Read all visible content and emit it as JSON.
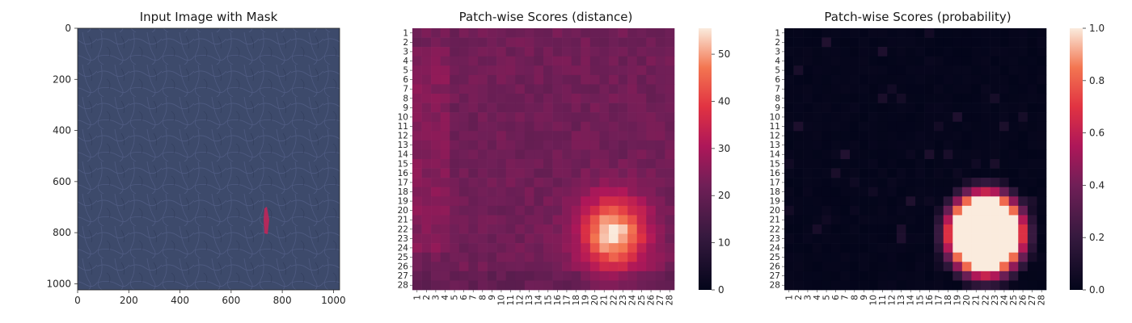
{
  "chart_data": [
    {
      "type": "image",
      "title": "Input Image with Mask",
      "xlim": [
        0,
        1024
      ],
      "ylim": [
        1024,
        0
      ],
      "xticks": [
        0,
        200,
        400,
        600,
        800,
        1000
      ],
      "yticks": [
        0,
        200,
        400,
        600,
        800,
        1000
      ],
      "image_description_colors": {
        "background": "#3c4a6c",
        "mask": "#c0265a"
      },
      "mask_region": {
        "x": [
          725,
          750
        ],
        "y": [
          705,
          800
        ]
      }
    },
    {
      "type": "heatmap",
      "title": "Patch-wise Scores (distance)",
      "rows": 28,
      "cols": 28,
      "xticks": [
        "1",
        "2",
        "3",
        "4",
        "5",
        "6",
        "7",
        "8",
        "9",
        "10",
        "11",
        "12",
        "13",
        "14",
        "15",
        "16",
        "17",
        "18",
        "19",
        "20",
        "21",
        "22",
        "23",
        "24",
        "25",
        "26",
        "27",
        "28"
      ],
      "yticks": [
        "1",
        "2",
        "3",
        "4",
        "5",
        "6",
        "7",
        "8",
        "9",
        "10",
        "11",
        "12",
        "13",
        "14",
        "15",
        "16",
        "17",
        "18",
        "19",
        "20",
        "21",
        "22",
        "23",
        "24",
        "25",
        "26",
        "27",
        "28"
      ],
      "colorbar": {
        "min": 0,
        "max": 55.5,
        "ticks": [
          0,
          10,
          20,
          30,
          40,
          50
        ]
      },
      "base_value": 22,
      "hotspot": {
        "center_row": 22.5,
        "center_col": 22,
        "peak": 55,
        "description": "bright anomaly region rows 19-26, cols 19-25"
      }
    },
    {
      "type": "heatmap",
      "title": "Patch-wise Scores (probability)",
      "rows": 28,
      "cols": 28,
      "xticks": [
        "1",
        "2",
        "3",
        "4",
        "5",
        "6",
        "7",
        "8",
        "9",
        "10",
        "11",
        "12",
        "13",
        "14",
        "15",
        "16",
        "17",
        "18",
        "19",
        "20",
        "21",
        "22",
        "23",
        "24",
        "25",
        "26",
        "27",
        "28"
      ],
      "yticks": [
        "1",
        "2",
        "3",
        "4",
        "5",
        "6",
        "7",
        "8",
        "9",
        "10",
        "11",
        "12",
        "13",
        "14",
        "15",
        "16",
        "17",
        "18",
        "19",
        "20",
        "21",
        "22",
        "23",
        "24",
        "25",
        "26",
        "27",
        "28"
      ],
      "colorbar": {
        "min": 0,
        "max": 1.0,
        "ticks": [
          0.0,
          0.2,
          0.4,
          0.6,
          0.8,
          1.0
        ],
        "tick_labels": [
          "0.0",
          "0.2",
          "0.4",
          "0.6",
          "0.8",
          "1.0"
        ]
      },
      "base_value": 0.0,
      "hotspot": {
        "center_row": 22.5,
        "center_col": 22,
        "peak": 1.0,
        "description": "saturated anomaly region rows 19-26, cols 19-25"
      }
    }
  ]
}
